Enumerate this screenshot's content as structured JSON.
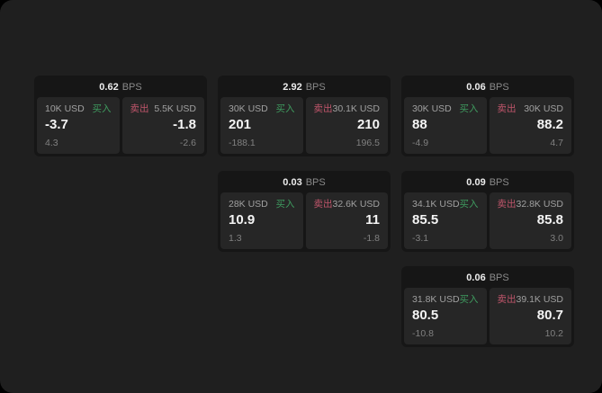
{
  "labels": {
    "bps": "BPS",
    "buy": "买入",
    "sell": "卖出"
  },
  "colors": {
    "page_background": "#1f1f1f",
    "outer_background": "#000000",
    "card_background": "#161616",
    "panel_background": "#262626",
    "buy_green": "#3f9b5f",
    "sell_rose": "#c0556b",
    "primary_text": "#f4f4f4",
    "muted_text": "#808080"
  },
  "cards": [
    {
      "bps": "0.62",
      "buy": {
        "amount": "10K USD",
        "price": "-3.7",
        "sub": "4.3"
      },
      "sell": {
        "amount": "5.5K USD",
        "price": "-1.8",
        "sub": "-2.6"
      }
    },
    {
      "bps": "2.92",
      "buy": {
        "amount": "30K USD",
        "price": "201",
        "sub": "-188.1"
      },
      "sell": {
        "amount": "30.1K USD",
        "price": "210",
        "sub": "196.5"
      }
    },
    {
      "bps": "0.06",
      "buy": {
        "amount": "30K USD",
        "price": "88",
        "sub": "-4.9"
      },
      "sell": {
        "amount": "30K USD",
        "price": "88.2",
        "sub": "4.7"
      }
    },
    {
      "bps": "0.03",
      "buy": {
        "amount": "28K USD",
        "price": "10.9",
        "sub": "1.3"
      },
      "sell": {
        "amount": "32.6K USD",
        "price": "11",
        "sub": "-1.8"
      }
    },
    {
      "bps": "0.09",
      "buy": {
        "amount": "34.1K USD",
        "price": "85.5",
        "sub": "-3.1"
      },
      "sell": {
        "amount": "32.8K USD",
        "price": "85.8",
        "sub": "3.0"
      }
    },
    {
      "bps": "0.06",
      "buy": {
        "amount": "31.8K USD",
        "price": "80.5",
        "sub": "-10.8"
      },
      "sell": {
        "amount": "39.1K USD",
        "price": "80.7",
        "sub": "10.2"
      }
    }
  ]
}
